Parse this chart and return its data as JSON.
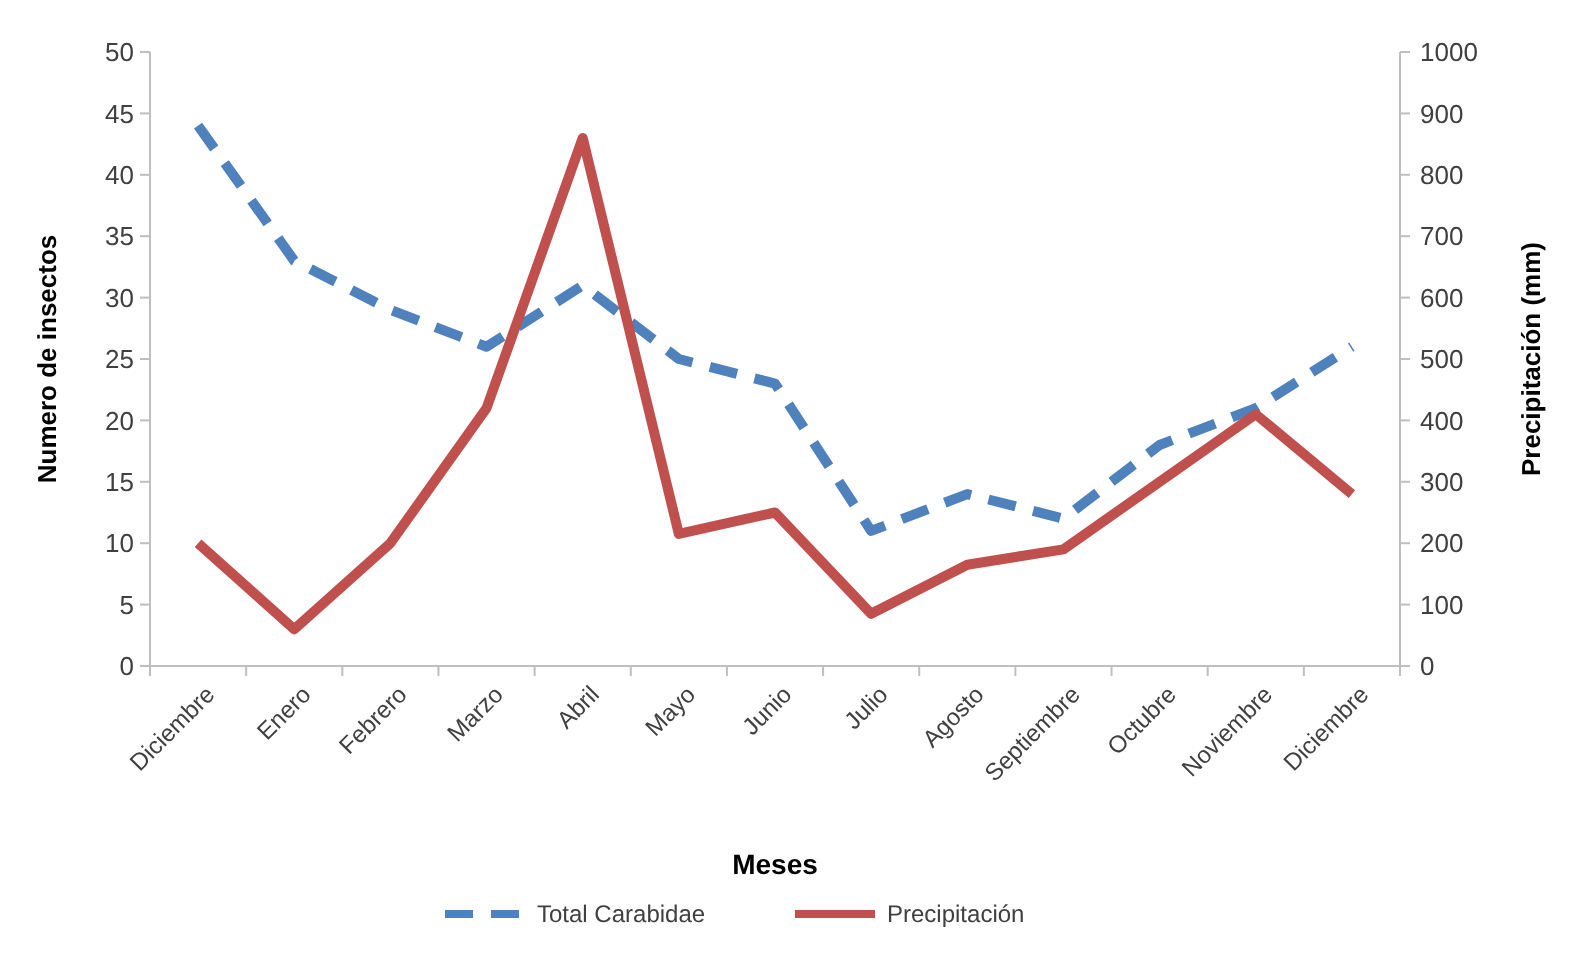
{
  "chart_data": {
    "type": "line",
    "xlabel": "Meses",
    "ylabel": "Numero de insectos",
    "y2label": "Precipitación (mm)",
    "categories": [
      "Diciembre",
      "Enero",
      "Febrero",
      "Marzo",
      "Abril",
      "Mayo",
      "Junio",
      "Julio",
      "Agosto",
      "Septiembre",
      "Octubre",
      "Noviembre",
      "Diciembre"
    ],
    "series": [
      {
        "name": "Total Carabidae",
        "color": "#4f81bd",
        "line_style": "dashed",
        "values": [
          44,
          33,
          29,
          26,
          31,
          25,
          23,
          11,
          14,
          12,
          18,
          21,
          26
        ]
      },
      {
        "name": "Precipitación",
        "color": "#c0504d",
        "line_style": "solid",
        "axis": "y2",
        "values": [
          200,
          60,
          200,
          420,
          860,
          215,
          250,
          85,
          165,
          190,
          300,
          410,
          280
        ]
      }
    ],
    "ylim": [
      0,
      50
    ],
    "yticks": [
      0,
      5,
      10,
      15,
      20,
      25,
      30,
      35,
      40,
      45,
      50
    ],
    "y2lim": [
      0,
      1000
    ],
    "y2ticks": [
      0,
      100,
      200,
      300,
      400,
      500,
      600,
      700,
      800,
      900,
      1000
    ],
    "grid": false,
    "legend": "bottom",
    "marker": "none"
  }
}
